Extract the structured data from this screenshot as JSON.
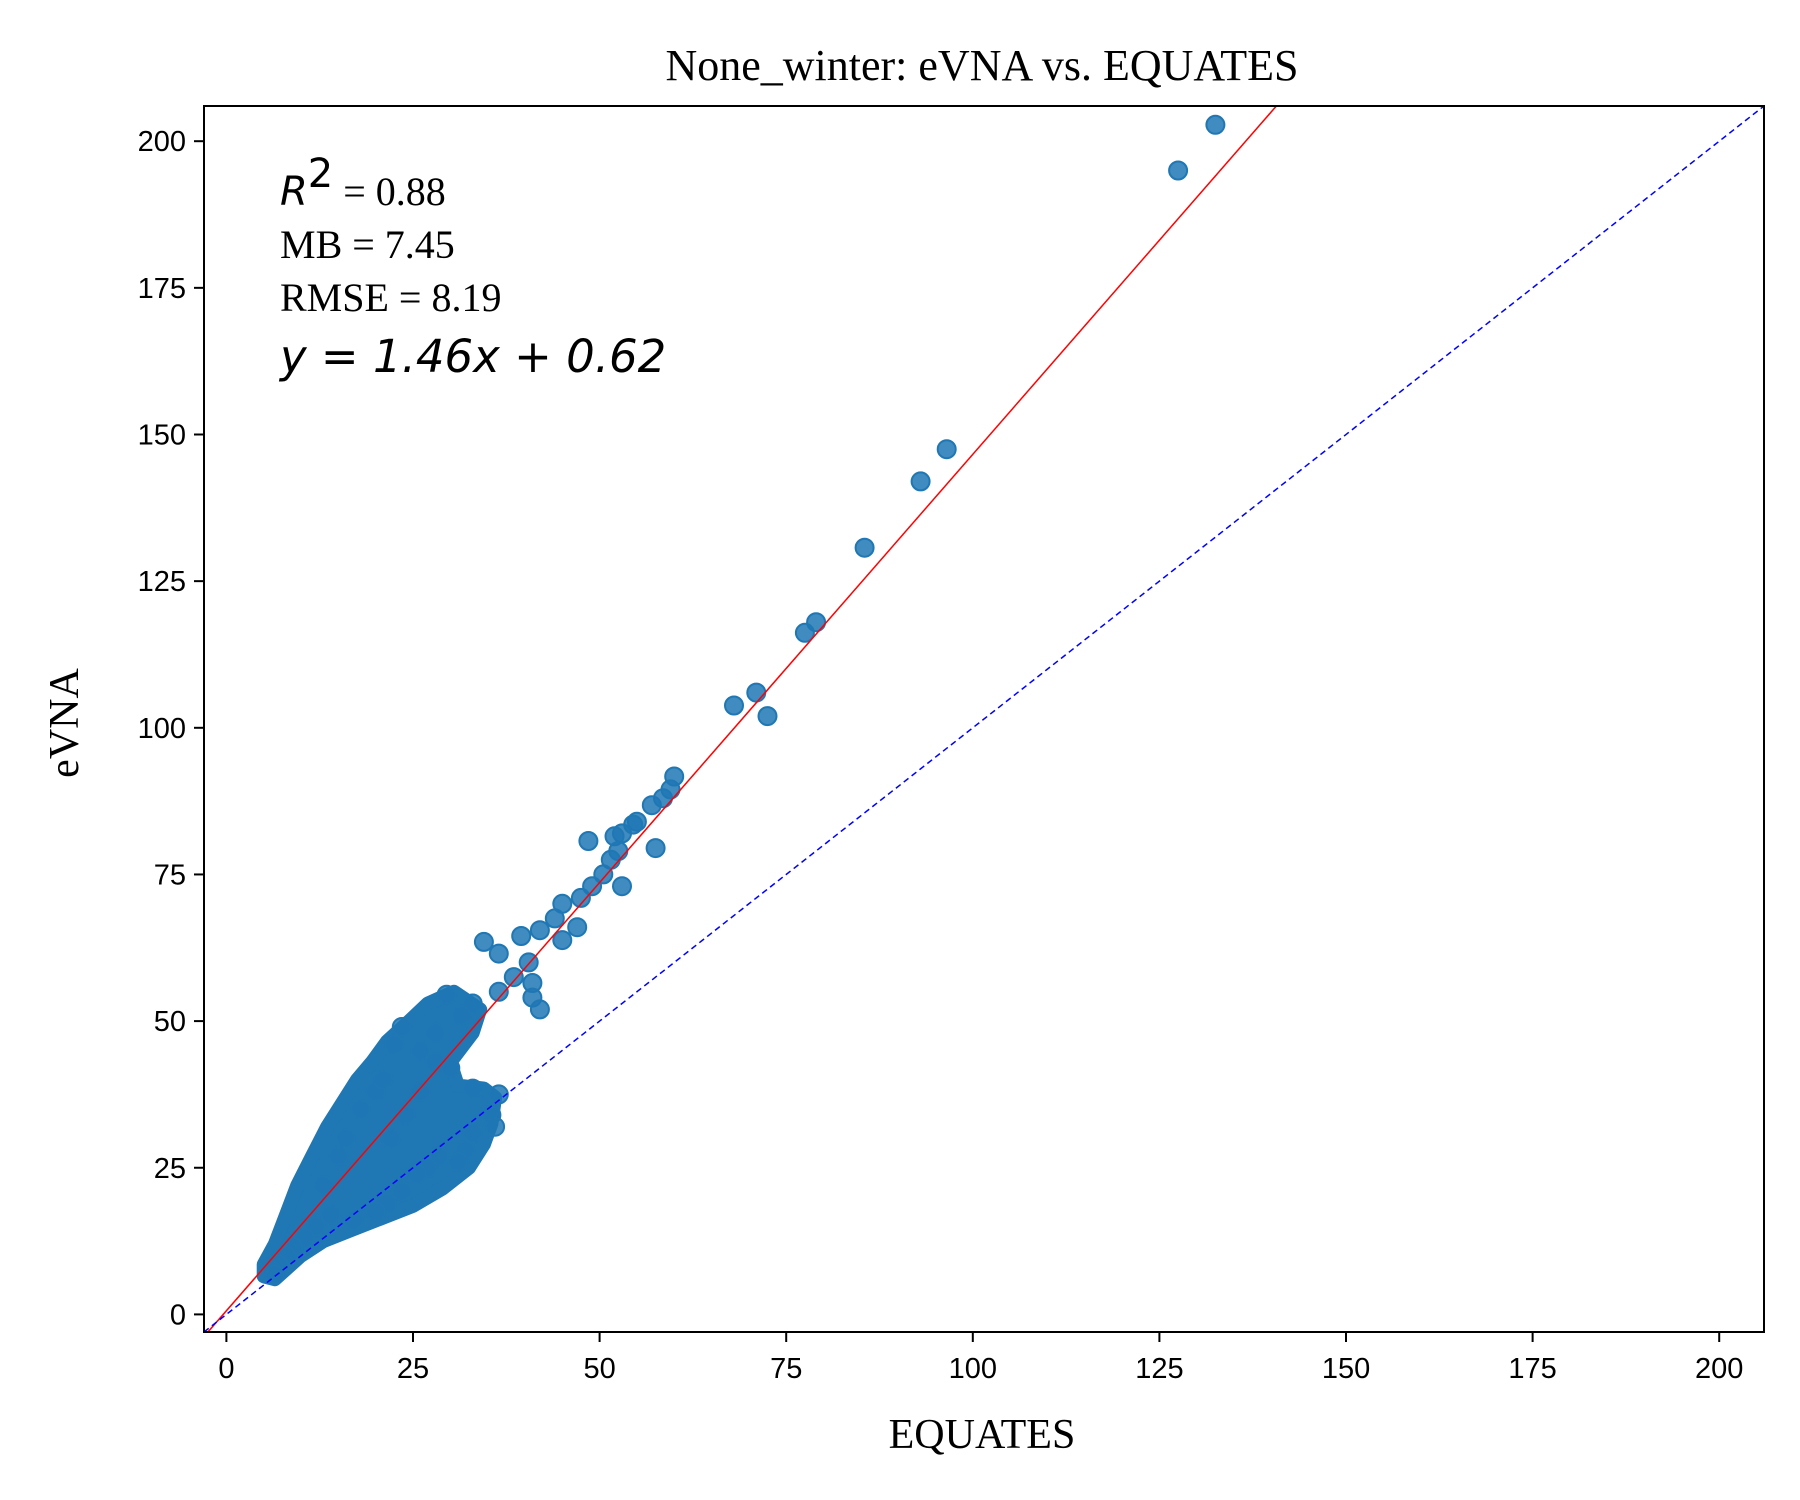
{
  "chart_data": {
    "type": "scatter",
    "title": "None_winter: eVNA vs. EQUATES",
    "xlabel": "EQUATES",
    "ylabel": "eVNA",
    "xlim": [
      -3,
      206
    ],
    "ylim": [
      -3,
      206
    ],
    "xticks": [
      0,
      25,
      50,
      75,
      100,
      125,
      150,
      175,
      200
    ],
    "yticks": [
      0,
      25,
      50,
      75,
      100,
      125,
      150,
      175,
      200
    ],
    "grid": false,
    "point_color": "#1f77b4",
    "fit_line_color": "#ff0000",
    "identity_line_color": "#0000ff",
    "fit": {
      "slope": 1.46,
      "intercept": 0.62
    },
    "annotations": {
      "r2_value": "= 0.88",
      "mb": "MB = 7.45",
      "rmse": "RMSE = 8.19",
      "equation": "y = 1.46x + 0.62"
    },
    "points": [
      [
        132.5,
        202.8
      ],
      [
        127.5,
        195.0
      ],
      [
        96.5,
        147.5
      ],
      [
        93.0,
        142.0
      ],
      [
        85.5,
        130.7
      ],
      [
        79.0,
        118.0
      ],
      [
        77.5,
        116.2
      ],
      [
        71.0,
        106.0
      ],
      [
        68.0,
        103.8
      ],
      [
        72.5,
        102.0
      ],
      [
        60.0,
        91.7
      ],
      [
        59.5,
        89.5
      ],
      [
        58.5,
        88.0
      ],
      [
        57.0,
        86.8
      ],
      [
        55.0,
        84.0
      ],
      [
        54.5,
        83.5
      ],
      [
        53.0,
        82.0
      ],
      [
        52.0,
        81.5
      ],
      [
        48.5,
        80.7
      ],
      [
        57.5,
        79.5
      ],
      [
        52.5,
        79.0
      ],
      [
        51.5,
        77.5
      ],
      [
        50.5,
        75.0
      ],
      [
        49.0,
        73.0
      ],
      [
        53.0,
        73.0
      ],
      [
        45.0,
        70.0
      ],
      [
        47.5,
        71.0
      ],
      [
        44.0,
        67.5
      ],
      [
        47.0,
        66.0
      ],
      [
        45.0,
        63.8
      ],
      [
        42.0,
        65.5
      ],
      [
        39.5,
        64.5
      ],
      [
        34.5,
        63.5
      ],
      [
        36.5,
        61.5
      ],
      [
        40.5,
        60.0
      ],
      [
        38.5,
        57.5
      ],
      [
        36.5,
        55.0
      ],
      [
        41.0,
        56.5
      ],
      [
        41.0,
        54.0
      ],
      [
        42.0,
        52.0
      ],
      [
        29.5,
        54.5
      ],
      [
        33.0,
        53.0
      ],
      [
        31.5,
        51.0
      ],
      [
        23.5,
        49.0
      ],
      [
        28.0,
        48.0
      ],
      [
        26.0,
        45.0
      ],
      [
        22.5,
        46.0
      ],
      [
        30.0,
        42.0
      ],
      [
        33.0,
        38.5
      ],
      [
        36.5,
        37.5
      ],
      [
        35.5,
        34.0
      ],
      [
        36.0,
        32.0
      ],
      [
        33.0,
        31.0
      ],
      [
        32.0,
        28.0
      ],
      [
        31.0,
        26.0
      ],
      [
        28.5,
        27.0
      ],
      [
        27.0,
        25.0
      ],
      [
        25.5,
        24.0
      ],
      [
        23.5,
        21.0
      ],
      [
        21.5,
        19.0
      ],
      [
        20.0,
        17.5
      ],
      [
        17.0,
        16.0
      ],
      [
        14.0,
        17.0
      ],
      [
        12.0,
        15.0
      ],
      [
        10.5,
        13.0
      ],
      [
        9.0,
        11.5
      ],
      [
        8.0,
        10.0
      ],
      [
        7.0,
        8.5
      ],
      [
        6.0,
        7.5
      ],
      [
        6.5,
        6.8
      ],
      [
        18.0,
        35.0
      ],
      [
        20.0,
        38.0
      ],
      [
        21.0,
        40.0
      ],
      [
        16.0,
        30.0
      ],
      [
        15.0,
        27.0
      ],
      [
        13.0,
        22.0
      ],
      [
        24.0,
        34.0
      ],
      [
        26.0,
        38.0
      ],
      [
        28.0,
        43.0
      ],
      [
        22.0,
        30.0
      ]
    ],
    "cloud_polygon": [
      [
        5.0,
        6.5
      ],
      [
        6.5,
        6.0
      ],
      [
        10.0,
        10.0
      ],
      [
        13.0,
        12.5
      ],
      [
        17.0,
        14.5
      ],
      [
        21.0,
        16.5
      ],
      [
        25.0,
        18.5
      ],
      [
        29.0,
        21.5
      ],
      [
        32.5,
        25.0
      ],
      [
        34.5,
        29.0
      ],
      [
        35.5,
        32.5
      ],
      [
        36.0,
        37.0
      ],
      [
        34.5,
        38.5
      ],
      [
        31.0,
        39.0
      ],
      [
        30.0,
        43.0
      ],
      [
        33.0,
        48.0
      ],
      [
        34.0,
        52.0
      ],
      [
        30.5,
        55.0
      ],
      [
        27.0,
        53.0
      ],
      [
        24.5,
        50.0
      ],
      [
        21.5,
        46.5
      ],
      [
        19.5,
        43.0
      ],
      [
        17.5,
        40.0
      ],
      [
        15.5,
        36.0
      ],
      [
        13.5,
        32.0
      ],
      [
        11.5,
        27.0
      ],
      [
        9.5,
        22.0
      ],
      [
        8.0,
        17.0
      ],
      [
        6.5,
        12.0
      ],
      [
        5.0,
        8.5
      ]
    ]
  }
}
